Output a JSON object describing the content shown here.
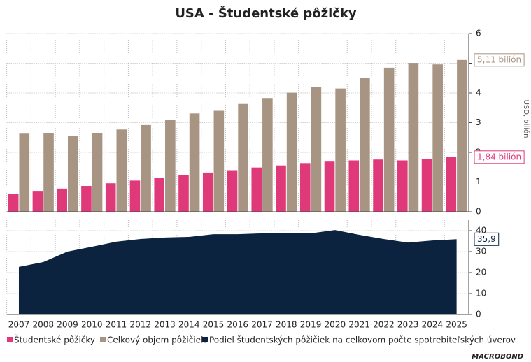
{
  "chart_data": [
    {
      "type": "bar",
      "title": "USA - Študentské pôžičky",
      "y_label": "USD, bilión",
      "series": [
        {
          "name": "Študentské pôžičky",
          "color": "#e0397a",
          "values": [
            0.6,
            0.68,
            0.78,
            0.87,
            0.96,
            1.05,
            1.14,
            1.24,
            1.32,
            1.4,
            1.49,
            1.56,
            1.64,
            1.69,
            1.73,
            1.76,
            1.73,
            1.78,
            1.84
          ],
          "value_labels": [
            null,
            null,
            null,
            null,
            null,
            null,
            null,
            null,
            null,
            null,
            null,
            null,
            null,
            null,
            null,
            null,
            null,
            null,
            "1,84 bilión"
          ]
        },
        {
          "name": "Celkový objem pôžičiek",
          "color": "#a89483",
          "values": [
            2.63,
            2.65,
            2.56,
            2.65,
            2.77,
            2.92,
            3.09,
            3.31,
            3.4,
            3.63,
            3.83,
            4.01,
            4.19,
            4.15,
            4.5,
            4.85,
            5.01,
            4.96,
            5.11
          ],
          "value_labels": [
            null,
            null,
            null,
            null,
            null,
            null,
            null,
            null,
            null,
            null,
            null,
            null,
            null,
            null,
            null,
            null,
            null,
            null,
            "5,11 bilión"
          ]
        }
      ],
      "ylim": [
        0,
        6
      ],
      "yticks": [
        0,
        1,
        2,
        3,
        4,
        5,
        6
      ],
      "grid": true
    },
    {
      "type": "area",
      "categories": [
        "2007",
        "2008",
        "2009",
        "2010",
        "2011",
        "2012",
        "2013",
        "2014",
        "2015",
        "2016",
        "2017",
        "2018",
        "2019",
        "2020",
        "2021",
        "2022",
        "2023",
        "2024",
        "2025"
      ],
      "series": [
        {
          "name": "Podiel študentských pôžičiek na celkovom počte spotrebiteľských úverov",
          "color": "#0c2340",
          "values": [
            22.7,
            25,
            30,
            32.3,
            34.7,
            36,
            36.7,
            37,
            38.3,
            38.3,
            38.7,
            38.7,
            38.7,
            40.3,
            38,
            36,
            34.3,
            35.3,
            35.9
          ],
          "value_labels": [
            null,
            null,
            null,
            null,
            null,
            null,
            null,
            null,
            null,
            null,
            null,
            null,
            null,
            null,
            null,
            null,
            null,
            null,
            "35,9"
          ]
        }
      ],
      "ylim": [
        0,
        45
      ],
      "yticks": [
        0,
        10,
        20,
        30,
        40
      ],
      "grid": true
    }
  ],
  "logo": "MACROBOND"
}
